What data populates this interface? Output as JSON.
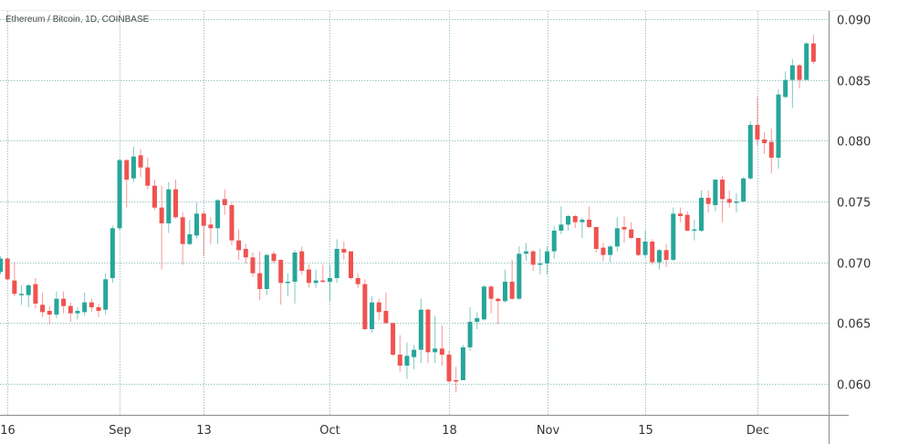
{
  "chart_data": {
    "type": "candlestick",
    "title": "Ethereum / Bitcoin, 1D, COINBASE",
    "xlabel": "",
    "ylabel": "",
    "ylim": [
      0.0575,
      0.0912
    ],
    "grid": true,
    "colors": {
      "up": "#26a69a",
      "down": "#ef5350",
      "grid": "#9fc6c6",
      "axis": "#8a8a8a"
    },
    "y_ticks": [
      "0.090",
      "0.085",
      "0.080",
      "0.075",
      "0.070",
      "0.065",
      "0.060"
    ],
    "x_ticks": [
      {
        "label": "16",
        "index": 1
      },
      {
        "label": "Sep",
        "index": 17
      },
      {
        "label": "13",
        "index": 29
      },
      {
        "label": "Oct",
        "index": 47
      },
      {
        "label": "18",
        "index": 64
      },
      {
        "label": "Nov",
        "index": 78
      },
      {
        "label": "15",
        "index": 92
      },
      {
        "label": "Dec",
        "index": 108
      }
    ],
    "ohlc_fields": [
      "open",
      "high",
      "low",
      "close"
    ],
    "ohlc": [
      [
        0.0692,
        0.0705,
        0.069,
        0.0703
      ],
      [
        0.0703,
        0.0704,
        0.0685,
        0.0686
      ],
      [
        0.0685,
        0.07,
        0.0672,
        0.0674
      ],
      [
        0.0673,
        0.0681,
        0.0665,
        0.0674
      ],
      [
        0.0673,
        0.0682,
        0.0663,
        0.0681
      ],
      [
        0.0682,
        0.0687,
        0.0662,
        0.0666
      ],
      [
        0.0665,
        0.0675,
        0.0655,
        0.0659
      ],
      [
        0.066,
        0.0664,
        0.0649,
        0.0657
      ],
      [
        0.0657,
        0.0676,
        0.0654,
        0.067
      ],
      [
        0.067,
        0.0676,
        0.0658,
        0.0664
      ],
      [
        0.0664,
        0.0667,
        0.0651,
        0.0658
      ],
      [
        0.0658,
        0.0663,
        0.0653,
        0.066
      ],
      [
        0.0659,
        0.0675,
        0.0656,
        0.0667
      ],
      [
        0.0667,
        0.067,
        0.0659,
        0.0663
      ],
      [
        0.0663,
        0.0666,
        0.0655,
        0.066
      ],
      [
        0.0661,
        0.0691,
        0.0657,
        0.0686
      ],
      [
        0.0687,
        0.073,
        0.0683,
        0.0728
      ],
      [
        0.0728,
        0.0785,
        0.0726,
        0.0784
      ],
      [
        0.0784,
        0.0785,
        0.0745,
        0.0768
      ],
      [
        0.0769,
        0.0795,
        0.0766,
        0.0787
      ],
      [
        0.0788,
        0.0793,
        0.077,
        0.0778
      ],
      [
        0.0778,
        0.0786,
        0.076,
        0.0763
      ],
      [
        0.0763,
        0.0768,
        0.0743,
        0.0745
      ],
      [
        0.0745,
        0.0763,
        0.0694,
        0.0732
      ],
      [
        0.0732,
        0.0766,
        0.0724,
        0.076
      ],
      [
        0.076,
        0.0768,
        0.0736,
        0.0737
      ],
      [
        0.0737,
        0.0741,
        0.0698,
        0.0715
      ],
      [
        0.0715,
        0.0735,
        0.0714,
        0.0723
      ],
      [
        0.0722,
        0.0749,
        0.0719,
        0.074
      ],
      [
        0.074,
        0.0742,
        0.0705,
        0.073
      ],
      [
        0.0731,
        0.0737,
        0.0715,
        0.0728
      ],
      [
        0.0728,
        0.0752,
        0.0715,
        0.0751
      ],
      [
        0.0752,
        0.076,
        0.0739,
        0.0747
      ],
      [
        0.0747,
        0.0749,
        0.0714,
        0.0718
      ],
      [
        0.0718,
        0.0727,
        0.0702,
        0.071
      ],
      [
        0.0711,
        0.0715,
        0.0699,
        0.0704
      ],
      [
        0.0704,
        0.0708,
        0.0688,
        0.0691
      ],
      [
        0.0691,
        0.0709,
        0.0669,
        0.0678
      ],
      [
        0.0678,
        0.0707,
        0.0673,
        0.0706
      ],
      [
        0.0707,
        0.0709,
        0.0699,
        0.0701
      ],
      [
        0.0702,
        0.0702,
        0.0665,
        0.0683
      ],
      [
        0.0683,
        0.0691,
        0.0672,
        0.0684
      ],
      [
        0.0684,
        0.071,
        0.0666,
        0.0708
      ],
      [
        0.0709,
        0.0713,
        0.069,
        0.0693
      ],
      [
        0.0694,
        0.0698,
        0.0679,
        0.0683
      ],
      [
        0.0683,
        0.0694,
        0.0679,
        0.0685
      ],
      [
        0.0685,
        0.0698,
        0.0683,
        0.0684
      ],
      [
        0.0684,
        0.0698,
        0.0668,
        0.0687
      ],
      [
        0.0687,
        0.0719,
        0.0683,
        0.0711
      ],
      [
        0.0711,
        0.0717,
        0.0702,
        0.0708
      ],
      [
        0.0709,
        0.0709,
        0.0686,
        0.0687
      ],
      [
        0.0687,
        0.0691,
        0.0679,
        0.0682
      ],
      [
        0.0682,
        0.0686,
        0.0644,
        0.0645
      ],
      [
        0.0645,
        0.0672,
        0.0642,
        0.0667
      ],
      [
        0.0667,
        0.067,
        0.0652,
        0.0659
      ],
      [
        0.066,
        0.0675,
        0.0649,
        0.065
      ],
      [
        0.065,
        0.065,
        0.0623,
        0.0624
      ],
      [
        0.0624,
        0.064,
        0.061,
        0.0615
      ],
      [
        0.0615,
        0.0634,
        0.0604,
        0.0623
      ],
      [
        0.0622,
        0.0632,
        0.0612,
        0.0628
      ],
      [
        0.0628,
        0.067,
        0.0617,
        0.0661
      ],
      [
        0.0661,
        0.0662,
        0.0617,
        0.0626
      ],
      [
        0.0626,
        0.0656,
        0.0617,
        0.0629
      ],
      [
        0.0629,
        0.0648,
        0.0615,
        0.0624
      ],
      [
        0.0624,
        0.0627,
        0.0601,
        0.0602
      ],
      [
        0.0603,
        0.0614,
        0.0593,
        0.0602
      ],
      [
        0.0603,
        0.0632,
        0.0604,
        0.063
      ],
      [
        0.063,
        0.0663,
        0.0627,
        0.0651
      ],
      [
        0.0651,
        0.0659,
        0.0645,
        0.0654
      ],
      [
        0.0653,
        0.0681,
        0.0652,
        0.068
      ],
      [
        0.068,
        0.0681,
        0.0658,
        0.067
      ],
      [
        0.067,
        0.0671,
        0.0649,
        0.0668
      ],
      [
        0.0668,
        0.0694,
        0.0667,
        0.0684
      ],
      [
        0.0684,
        0.0702,
        0.0669,
        0.067
      ],
      [
        0.067,
        0.0713,
        0.0669,
        0.0707
      ],
      [
        0.0707,
        0.0716,
        0.0701,
        0.0709
      ],
      [
        0.0709,
        0.071,
        0.0693,
        0.0698
      ],
      [
        0.0698,
        0.0711,
        0.069,
        0.0699
      ],
      [
        0.0699,
        0.0713,
        0.069,
        0.0709
      ],
      [
        0.0709,
        0.073,
        0.0703,
        0.0726
      ],
      [
        0.0726,
        0.0746,
        0.0723,
        0.0731
      ],
      [
        0.0731,
        0.0739,
        0.0726,
        0.0738
      ],
      [
        0.0738,
        0.0739,
        0.0728,
        0.0733
      ],
      [
        0.0733,
        0.0737,
        0.072,
        0.0735
      ],
      [
        0.0735,
        0.0746,
        0.0728,
        0.0729
      ],
      [
        0.0729,
        0.0729,
        0.0708,
        0.0711
      ],
      [
        0.0712,
        0.0716,
        0.0701,
        0.0706
      ],
      [
        0.0706,
        0.0714,
        0.07,
        0.0713
      ],
      [
        0.0713,
        0.0737,
        0.0709,
        0.0728
      ],
      [
        0.0729,
        0.0738,
        0.0716,
        0.0727
      ],
      [
        0.0727,
        0.0733,
        0.0719,
        0.072
      ],
      [
        0.072,
        0.072,
        0.0705,
        0.0706
      ],
      [
        0.0706,
        0.0726,
        0.0704,
        0.0717
      ],
      [
        0.0717,
        0.0719,
        0.0698,
        0.07
      ],
      [
        0.07,
        0.0711,
        0.0694,
        0.071
      ],
      [
        0.071,
        0.0715,
        0.0696,
        0.0702
      ],
      [
        0.0702,
        0.0745,
        0.0701,
        0.074
      ],
      [
        0.074,
        0.0745,
        0.0733,
        0.0738
      ],
      [
        0.0739,
        0.0742,
        0.0726,
        0.0726
      ],
      [
        0.0726,
        0.0735,
        0.0718,
        0.0727
      ],
      [
        0.0726,
        0.0759,
        0.0725,
        0.0753
      ],
      [
        0.0753,
        0.0759,
        0.0741,
        0.0748
      ],
      [
        0.0747,
        0.0768,
        0.0742,
        0.0768
      ],
      [
        0.0768,
        0.0771,
        0.0733,
        0.0752
      ],
      [
        0.0752,
        0.0759,
        0.0745,
        0.0749
      ],
      [
        0.0749,
        0.0757,
        0.0741,
        0.075
      ],
      [
        0.075,
        0.077,
        0.0749,
        0.0769
      ],
      [
        0.0769,
        0.0816,
        0.0768,
        0.0813
      ],
      [
        0.0813,
        0.0836,
        0.0796,
        0.0801
      ],
      [
        0.0801,
        0.0807,
        0.0789,
        0.0798
      ],
      [
        0.0799,
        0.081,
        0.0773,
        0.0786
      ],
      [
        0.0786,
        0.0842,
        0.0777,
        0.0838
      ],
      [
        0.0836,
        0.0857,
        0.0835,
        0.085
      ],
      [
        0.085,
        0.0867,
        0.0827,
        0.0862
      ],
      [
        0.0862,
        0.0863,
        0.0843,
        0.085
      ],
      [
        0.085,
        0.0881,
        0.085,
        0.088
      ],
      [
        0.088,
        0.0887,
        0.0863,
        0.0865
      ]
    ]
  }
}
